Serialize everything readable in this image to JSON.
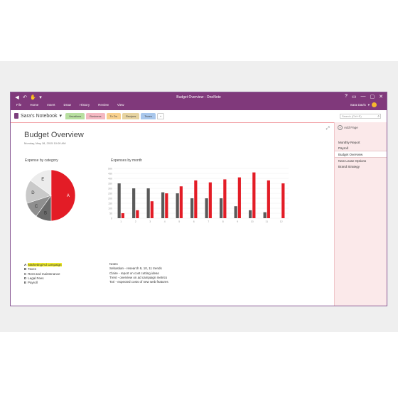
{
  "window": {
    "title": "Budget Overview - OneNote",
    "menu": [
      "File",
      "Home",
      "Insert",
      "Draw",
      "History",
      "Review",
      "View"
    ],
    "user": "Sara Davis",
    "controls": [
      "?",
      "▭",
      "—",
      "▢",
      "✕"
    ]
  },
  "toolbar": {
    "notebook": "Sara's Notebook",
    "tabs": [
      {
        "label": "Vacations",
        "color": "#b8dfa0"
      },
      {
        "label": "Business",
        "color": "#f4b8c2"
      },
      {
        "label": "To Do",
        "color": "#f8d08e"
      },
      {
        "label": "Recipes",
        "color": "#e6d3a0"
      },
      {
        "label": "Taxes",
        "color": "#a9c7ec"
      },
      {
        "label": "+",
        "color": "#ffffff"
      }
    ],
    "search_placeholder": "Search (Ctrl+E)"
  },
  "pages_panel": {
    "add_page": "Add Page",
    "pages": [
      "Monthly Report",
      "Payroll",
      "Budget Overview",
      "New Lease Options",
      "Brand Strategy"
    ],
    "selected": "Budget Overview"
  },
  "page": {
    "title": "Budget Overview",
    "date": "Monday, May 18, 2015    10:00 AM"
  },
  "pie": {
    "title": "Expense by category",
    "slices": [
      {
        "label": "A",
        "value": 50,
        "color": "#e31c26"
      },
      {
        "label": "B",
        "value": 10,
        "color": "#6a6a6a"
      },
      {
        "label": "C",
        "value": 10,
        "color": "#8f8f8f"
      },
      {
        "label": "D",
        "value": 15,
        "color": "#c9c9c9"
      },
      {
        "label": "E",
        "value": 15,
        "color": "#ececec"
      }
    ]
  },
  "chart_data": {
    "type": "bar",
    "title": "Expenses by month",
    "categories": [
      "1",
      "2",
      "3",
      "4",
      "5",
      "6",
      "7",
      "8",
      "9",
      "10",
      "11",
      "12"
    ],
    "yticks": [
      "0",
      "50",
      "100",
      "150",
      "200",
      "250",
      "300",
      "350",
      "400",
      "450",
      "500"
    ],
    "ylim": [
      0,
      500
    ],
    "series": [
      {
        "color": "#5a5a5a",
        "values": [
          350,
          300,
          300,
          260,
          250,
          200,
          200,
          200,
          120,
          80,
          60,
          0
        ]
      },
      {
        "color": "#e31c26",
        "values": [
          50,
          80,
          170,
          250,
          320,
          380,
          360,
          390,
          410,
          460,
          380,
          350
        ]
      }
    ],
    "grid": true
  },
  "legend": [
    {
      "key": "A",
      "label": "Marketing/Ad campaign",
      "highlight": true
    },
    {
      "key": "B",
      "label": "Taxes",
      "highlight": false
    },
    {
      "key": "C",
      "label": "Rent and maintenance",
      "highlight": false
    },
    {
      "key": "D",
      "label": "Legal Fees",
      "highlight": false
    },
    {
      "key": "E",
      "label": "Payroll",
      "highlight": false
    }
  ],
  "notes": {
    "title": "Notes",
    "lines": [
      "Sebastian - research 9, 10, 11 trends",
      "Claire - report on cost cutting ideas",
      "Trent - overview on ad campaign metrics",
      "Tori - expected costs of new web features"
    ]
  }
}
